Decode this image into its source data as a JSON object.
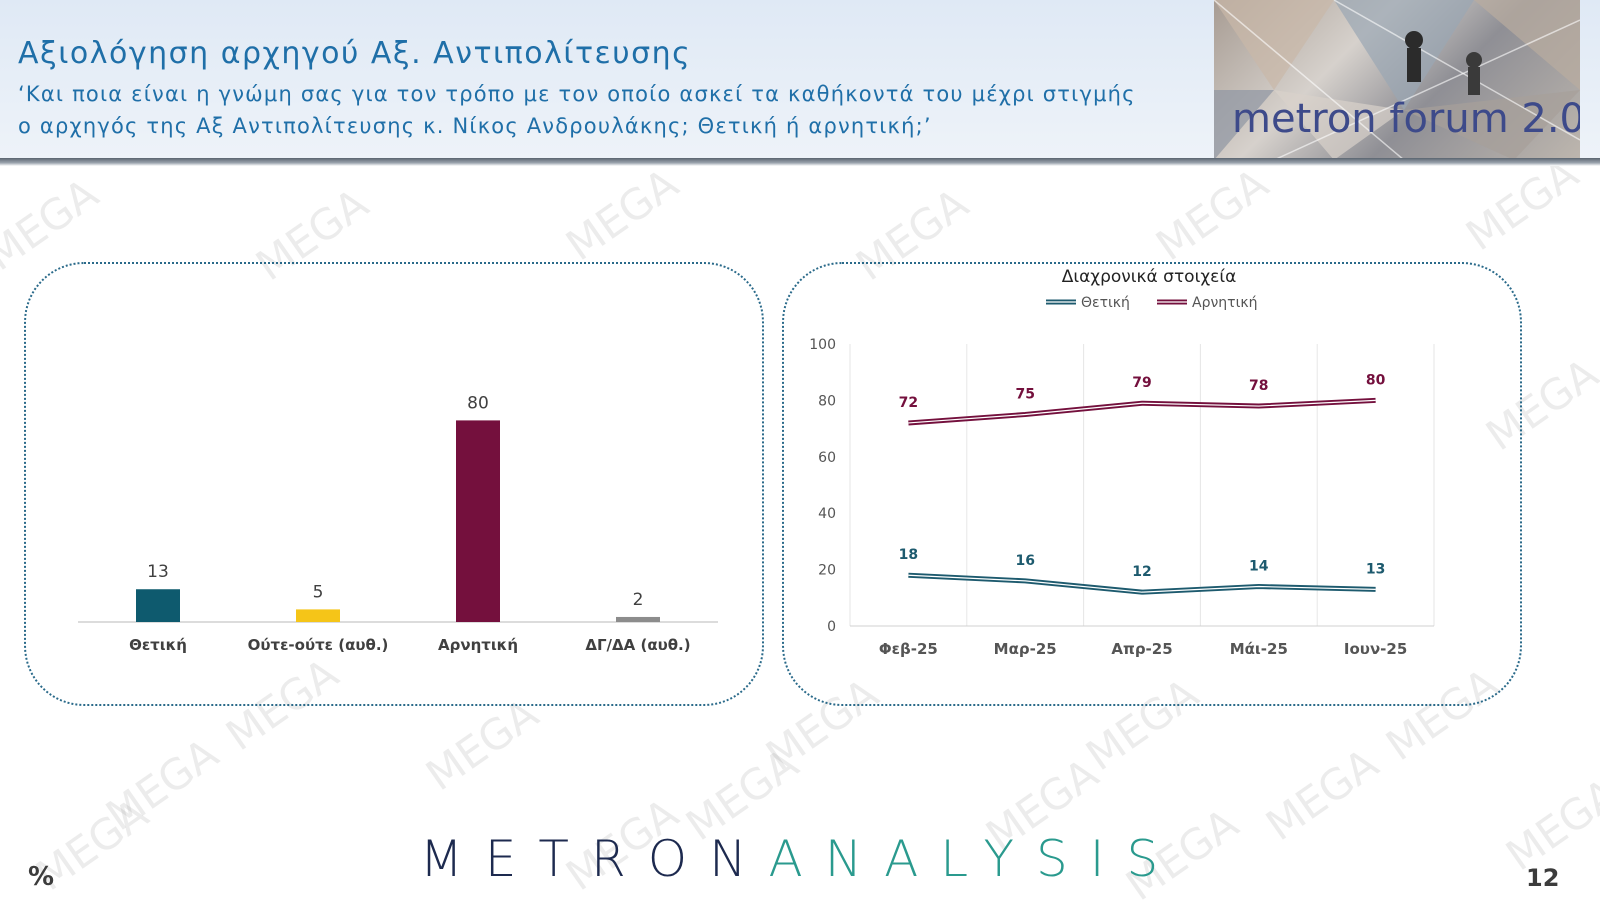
{
  "header": {
    "title": "Αξιολόγηση αρχηγού Αξ. Αντιπολίτευσης",
    "subtitle": "‘Και ποια είναι η γνώμη σας για τον τρόπο με τον οποίο ασκεί τα καθήκοντά του μέχρι στιγμής ο αρχηγός της Αξ Αντιπολίτευσης κ. Νίκος Ανδρουλάκης; Θετική ή αρνητική;’",
    "photo_caption": "metron forum 2.0"
  },
  "chart_data": [
    {
      "type": "bar",
      "categories": [
        "Θετική",
        "Ούτε-ούτε (αυθ.)",
        "Αρνητική",
        "ΔΓ/ΔΑ (αυθ.)"
      ],
      "values": [
        13,
        5,
        80,
        2
      ],
      "colors": [
        "#0e5a6e",
        "#f5c518",
        "#74103d",
        "#8c8c8c"
      ],
      "ylim": [
        0,
        100
      ]
    },
    {
      "type": "line",
      "title": "Διαχρονικά στοιχεία",
      "x": [
        "Φεβ-25",
        "Μαρ-25",
        "Απρ-25",
        "Μάι-25",
        "Ιουν-25"
      ],
      "series": [
        {
          "name": "Θετική",
          "values": [
            18,
            16,
            12,
            14,
            13
          ],
          "color": "#1d5a6e"
        },
        {
          "name": "Αρνητική",
          "values": [
            72,
            75,
            79,
            78,
            80
          ],
          "color": "#74103d"
        }
      ],
      "yticks": [
        "0",
        "20",
        "40",
        "60",
        "80",
        "100"
      ],
      "ylim": [
        0,
        100
      ],
      "legend": "top",
      "grid": "vertical"
    }
  ],
  "footer": {
    "logo_left": "METRON",
    "logo_right": "ANALYSIS",
    "percent": "%",
    "page": "12"
  },
  "watermark": "MEGA"
}
